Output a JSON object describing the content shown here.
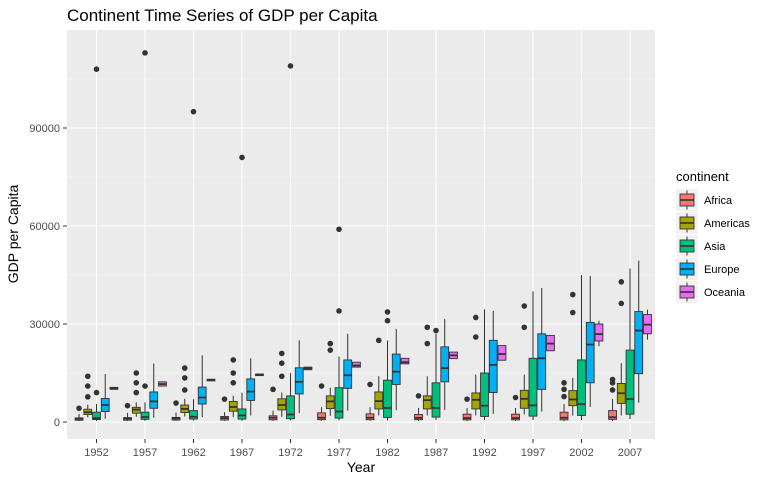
{
  "chart_data": {
    "type": "boxplot",
    "title": "Continent Time Series of GDP per Capita",
    "xlabel": "Year",
    "ylabel": "GDP per Capita",
    "x_categories": [
      "1952",
      "1957",
      "1962",
      "1967",
      "1972",
      "1977",
      "1982",
      "1987",
      "1992",
      "1997",
      "2002",
      "2007"
    ],
    "ylim": [
      -4000,
      118000
    ],
    "y_ticks": [
      0,
      30000,
      60000,
      90000
    ],
    "y_tick_labels": [
      "0",
      "30000",
      "60000",
      "90000"
    ],
    "grid": true,
    "legend": {
      "title": "continent",
      "position": "right",
      "entries": [
        "Africa",
        "Americas",
        "Asia",
        "Europe",
        "Oceania"
      ]
    },
    "colors": {
      "Africa": "#F8766D",
      "Americas": "#A3A500",
      "Asia": "#00BF7D",
      "Europe": "#00B0F6",
      "Oceania": "#E76BF3",
      "panel": "#EBEBEB",
      "grid": "#FFFFFF"
    },
    "series": [
      {
        "name": "Africa",
        "boxes": [
          {
            "x": "1952",
            "q1": 530,
            "median": 990,
            "q3": 1250,
            "lo": 300,
            "hi": 2500,
            "outliers": [
              4200
            ]
          },
          {
            "x": "1957",
            "q1": 560,
            "median": 1030,
            "q3": 1350,
            "lo": 330,
            "hi": 2800,
            "outliers": [
              5000
            ]
          },
          {
            "x": "1962",
            "q1": 600,
            "median": 1100,
            "q3": 1400,
            "lo": 350,
            "hi": 2900,
            "outliers": [
              5800
            ]
          },
          {
            "x": "1967",
            "q1": 620,
            "median": 1200,
            "q3": 1700,
            "lo": 350,
            "hi": 3000,
            "outliers": [
              7000
            ]
          },
          {
            "x": "1972",
            "q1": 670,
            "median": 1300,
            "q3": 1900,
            "lo": 350,
            "hi": 3500,
            "outliers": [
              10000
            ]
          },
          {
            "x": "1977",
            "q1": 700,
            "median": 1300,
            "q3": 2800,
            "lo": 350,
            "hi": 4500,
            "outliers": [
              11000
            ]
          },
          {
            "x": "1982",
            "q1": 700,
            "median": 1300,
            "q3": 2500,
            "lo": 400,
            "hi": 4500,
            "outliers": [
              11500
            ]
          },
          {
            "x": "1987",
            "q1": 700,
            "median": 1250,
            "q3": 2300,
            "lo": 350,
            "hi": 4300,
            "outliers": [
              8000
            ]
          },
          {
            "x": "1992",
            "q1": 650,
            "median": 1200,
            "q3": 2400,
            "lo": 300,
            "hi": 4300,
            "outliers": [
              7000
            ]
          },
          {
            "x": "1997",
            "q1": 650,
            "median": 1200,
            "q3": 2400,
            "lo": 300,
            "hi": 4300,
            "outliers": [
              7500
            ]
          },
          {
            "x": "2002",
            "q1": 650,
            "median": 1300,
            "q3": 3000,
            "lo": 250,
            "hi": 5500,
            "outliers": [
              7800,
              10000,
              12000
            ]
          },
          {
            "x": "2007",
            "q1": 800,
            "median": 1450,
            "q3": 3500,
            "lo": 280,
            "hi": 7000,
            "outliers": [
              9800,
              12000,
              13000
            ]
          }
        ]
      },
      {
        "name": "Americas",
        "boxes": [
          {
            "x": "1952",
            "q1": 2300,
            "median": 3000,
            "q3": 3900,
            "lo": 1400,
            "hi": 5300,
            "outliers": [
              7700,
              11000,
              14000
            ]
          },
          {
            "x": "1957",
            "q1": 2700,
            "median": 3800,
            "q3": 4500,
            "lo": 1600,
            "hi": 6000,
            "outliers": [
              9000,
              12000,
              15000
            ]
          },
          {
            "x": "1962",
            "q1": 2900,
            "median": 4000,
            "q3": 5200,
            "lo": 1700,
            "hi": 7100,
            "outliers": [
              9800,
              13500,
              16500
            ]
          },
          {
            "x": "1967",
            "q1": 3300,
            "median": 4600,
            "q3": 6300,
            "lo": 1500,
            "hi": 8000,
            "outliers": [
              12000,
              15000,
              19000
            ]
          },
          {
            "x": "1972",
            "q1": 3700,
            "median": 5200,
            "q3": 7100,
            "lo": 1600,
            "hi": 9000,
            "outliers": [
              14000,
              18000,
              21000
            ]
          },
          {
            "x": "1977",
            "q1": 4100,
            "median": 6300,
            "q3": 8000,
            "lo": 1900,
            "hi": 10500,
            "outliers": [
              22000,
              24000
            ]
          },
          {
            "x": "1982",
            "q1": 4000,
            "median": 6400,
            "q3": 9200,
            "lo": 2000,
            "hi": 14000,
            "outliers": [
              25000
            ]
          },
          {
            "x": "1987",
            "q1": 4000,
            "median": 6700,
            "q3": 8000,
            "lo": 2000,
            "hi": 14000,
            "outliers": [
              24000,
              29000
            ]
          },
          {
            "x": "1992",
            "q1": 4000,
            "median": 6800,
            "q3": 8900,
            "lo": 2000,
            "hi": 14500,
            "outliers": [
              26000,
              32000
            ]
          },
          {
            "x": "1997",
            "q1": 4200,
            "median": 7100,
            "q3": 9700,
            "lo": 2300,
            "hi": 14500,
            "outliers": [
              29000,
              35500
            ]
          },
          {
            "x": "2002",
            "q1": 5000,
            "median": 6900,
            "q3": 9600,
            "lo": 2000,
            "hi": 13500,
            "outliers": [
              33500,
              39000
            ]
          },
          {
            "x": "2007",
            "q1": 5700,
            "median": 8800,
            "q3": 11800,
            "lo": 2000,
            "hi": 18000,
            "outliers": [
              36300,
              42900
            ]
          }
        ]
      },
      {
        "name": "Asia",
        "boxes": [
          {
            "x": "1952",
            "q1": 750,
            "median": 1200,
            "q3": 3000,
            "lo": 330,
            "hi": 5500,
            "outliers": [
              9000,
              108000
            ]
          },
          {
            "x": "1957",
            "q1": 800,
            "median": 1500,
            "q3": 3000,
            "lo": 350,
            "hi": 6000,
            "outliers": [
              11000,
              113000
            ]
          },
          {
            "x": "1962",
            "q1": 900,
            "median": 1600,
            "q3": 3500,
            "lo": 370,
            "hi": 7000,
            "outliers": [
              95000
            ]
          },
          {
            "x": "1967",
            "q1": 900,
            "median": 2000,
            "q3": 4000,
            "lo": 350,
            "hi": 9000,
            "outliers": [
              81000
            ]
          },
          {
            "x": "1972",
            "q1": 1000,
            "median": 2300,
            "q3": 8000,
            "lo": 500,
            "hi": 15000,
            "outliers": [
              109000
            ]
          },
          {
            "x": "1977",
            "q1": 1200,
            "median": 3200,
            "q3": 10500,
            "lo": 550,
            "hi": 20000,
            "outliers": [
              34000,
              59000
            ]
          },
          {
            "x": "1982",
            "q1": 1400,
            "median": 4300,
            "q3": 12800,
            "lo": 450,
            "hi": 25000,
            "outliers": [
              31000,
              33700
            ]
          },
          {
            "x": "1987",
            "q1": 1500,
            "median": 4300,
            "q3": 12000,
            "lo": 600,
            "hi": 27000,
            "outliers": [
              28000
            ]
          },
          {
            "x": "1992",
            "q1": 1700,
            "median": 5000,
            "q3": 15000,
            "lo": 600,
            "hi": 34500,
            "outliers": []
          },
          {
            "x": "1997",
            "q1": 1800,
            "median": 5100,
            "q3": 19500,
            "lo": 600,
            "hi": 40000,
            "outliers": []
          },
          {
            "x": "2002",
            "q1": 2000,
            "median": 5500,
            "q3": 19000,
            "lo": 600,
            "hi": 45000,
            "outliers": []
          },
          {
            "x": "2007",
            "q1": 2400,
            "median": 7000,
            "q3": 22000,
            "lo": 900,
            "hi": 47000,
            "outliers": []
          }
        ]
      },
      {
        "name": "Europe",
        "boxes": [
          {
            "x": "1952",
            "q1": 3200,
            "median": 5200,
            "q3": 7200,
            "lo": 1000,
            "hi": 14700,
            "outliers": []
          },
          {
            "x": "1957",
            "q1": 4200,
            "median": 6300,
            "q3": 9200,
            "lo": 1300,
            "hi": 17900,
            "outliers": []
          },
          {
            "x": "1962",
            "q1": 5500,
            "median": 7500,
            "q3": 10700,
            "lo": 1500,
            "hi": 20400,
            "outliers": []
          },
          {
            "x": "1967",
            "q1": 6600,
            "median": 9300,
            "q3": 13200,
            "lo": 2000,
            "hi": 19500,
            "outliers": []
          },
          {
            "x": "1972",
            "q1": 8600,
            "median": 12300,
            "q3": 16600,
            "lo": 2700,
            "hi": 25000,
            "outliers": []
          },
          {
            "x": "1977",
            "q1": 10300,
            "median": 14300,
            "q3": 19000,
            "lo": 3500,
            "hi": 27000,
            "outliers": []
          },
          {
            "x": "1982",
            "q1": 11500,
            "median": 15400,
            "q3": 20800,
            "lo": 3600,
            "hi": 28500,
            "outliers": []
          },
          {
            "x": "1987",
            "q1": 12300,
            "median": 16500,
            "q3": 23000,
            "lo": 3700,
            "hi": 31500,
            "outliers": []
          },
          {
            "x": "1992",
            "q1": 9000,
            "median": 17500,
            "q3": 25000,
            "lo": 2500,
            "hi": 34000,
            "outliers": []
          },
          {
            "x": "1997",
            "q1": 10000,
            "median": 19500,
            "q3": 27000,
            "lo": 3200,
            "hi": 41000,
            "outliers": []
          },
          {
            "x": "2002",
            "q1": 12000,
            "median": 23700,
            "q3": 30500,
            "lo": 4600,
            "hi": 44700,
            "outliers": []
          },
          {
            "x": "2007",
            "q1": 14800,
            "median": 28000,
            "q3": 33800,
            "lo": 5900,
            "hi": 49400,
            "outliers": []
          }
        ]
      },
      {
        "name": "Oceania",
        "boxes": [
          {
            "x": "1952",
            "q1": 10000,
            "median": 10300,
            "q3": 10600,
            "lo": 10000,
            "hi": 10600,
            "outliers": []
          },
          {
            "x": "1957",
            "q1": 11000,
            "median": 11600,
            "q3": 12300,
            "lo": 11000,
            "hi": 12300,
            "outliers": []
          },
          {
            "x": "1962",
            "q1": 12600,
            "median": 12800,
            "q3": 13100,
            "lo": 12600,
            "hi": 13100,
            "outliers": []
          },
          {
            "x": "1967",
            "q1": 14200,
            "median": 14500,
            "q3": 14700,
            "lo": 14200,
            "hi": 14700,
            "outliers": []
          },
          {
            "x": "1972",
            "q1": 16000,
            "median": 16400,
            "q3": 16800,
            "lo": 16000,
            "hi": 16800,
            "outliers": []
          },
          {
            "x": "1977",
            "q1": 16800,
            "median": 17300,
            "q3": 18300,
            "lo": 16800,
            "hi": 18300,
            "outliers": []
          },
          {
            "x": "1982",
            "q1": 17800,
            "median": 18300,
            "q3": 19500,
            "lo": 17800,
            "hi": 19500,
            "outliers": []
          },
          {
            "x": "1987",
            "q1": 19400,
            "median": 20400,
            "q3": 21400,
            "lo": 19400,
            "hi": 21400,
            "outliers": []
          },
          {
            "x": "1992",
            "q1": 18900,
            "median": 20800,
            "q3": 23400,
            "lo": 18900,
            "hi": 23400,
            "outliers": []
          },
          {
            "x": "1997",
            "q1": 21800,
            "median": 24000,
            "q3": 26500,
            "lo": 21800,
            "hi": 26500,
            "outliers": []
          },
          {
            "x": "2002",
            "q1": 24800,
            "median": 26900,
            "q3": 30000,
            "lo": 23200,
            "hi": 31000,
            "outliers": []
          },
          {
            "x": "2007",
            "q1": 27000,
            "median": 29800,
            "q3": 32900,
            "lo": 25200,
            "hi": 34400,
            "outliers": []
          }
        ]
      }
    ]
  }
}
